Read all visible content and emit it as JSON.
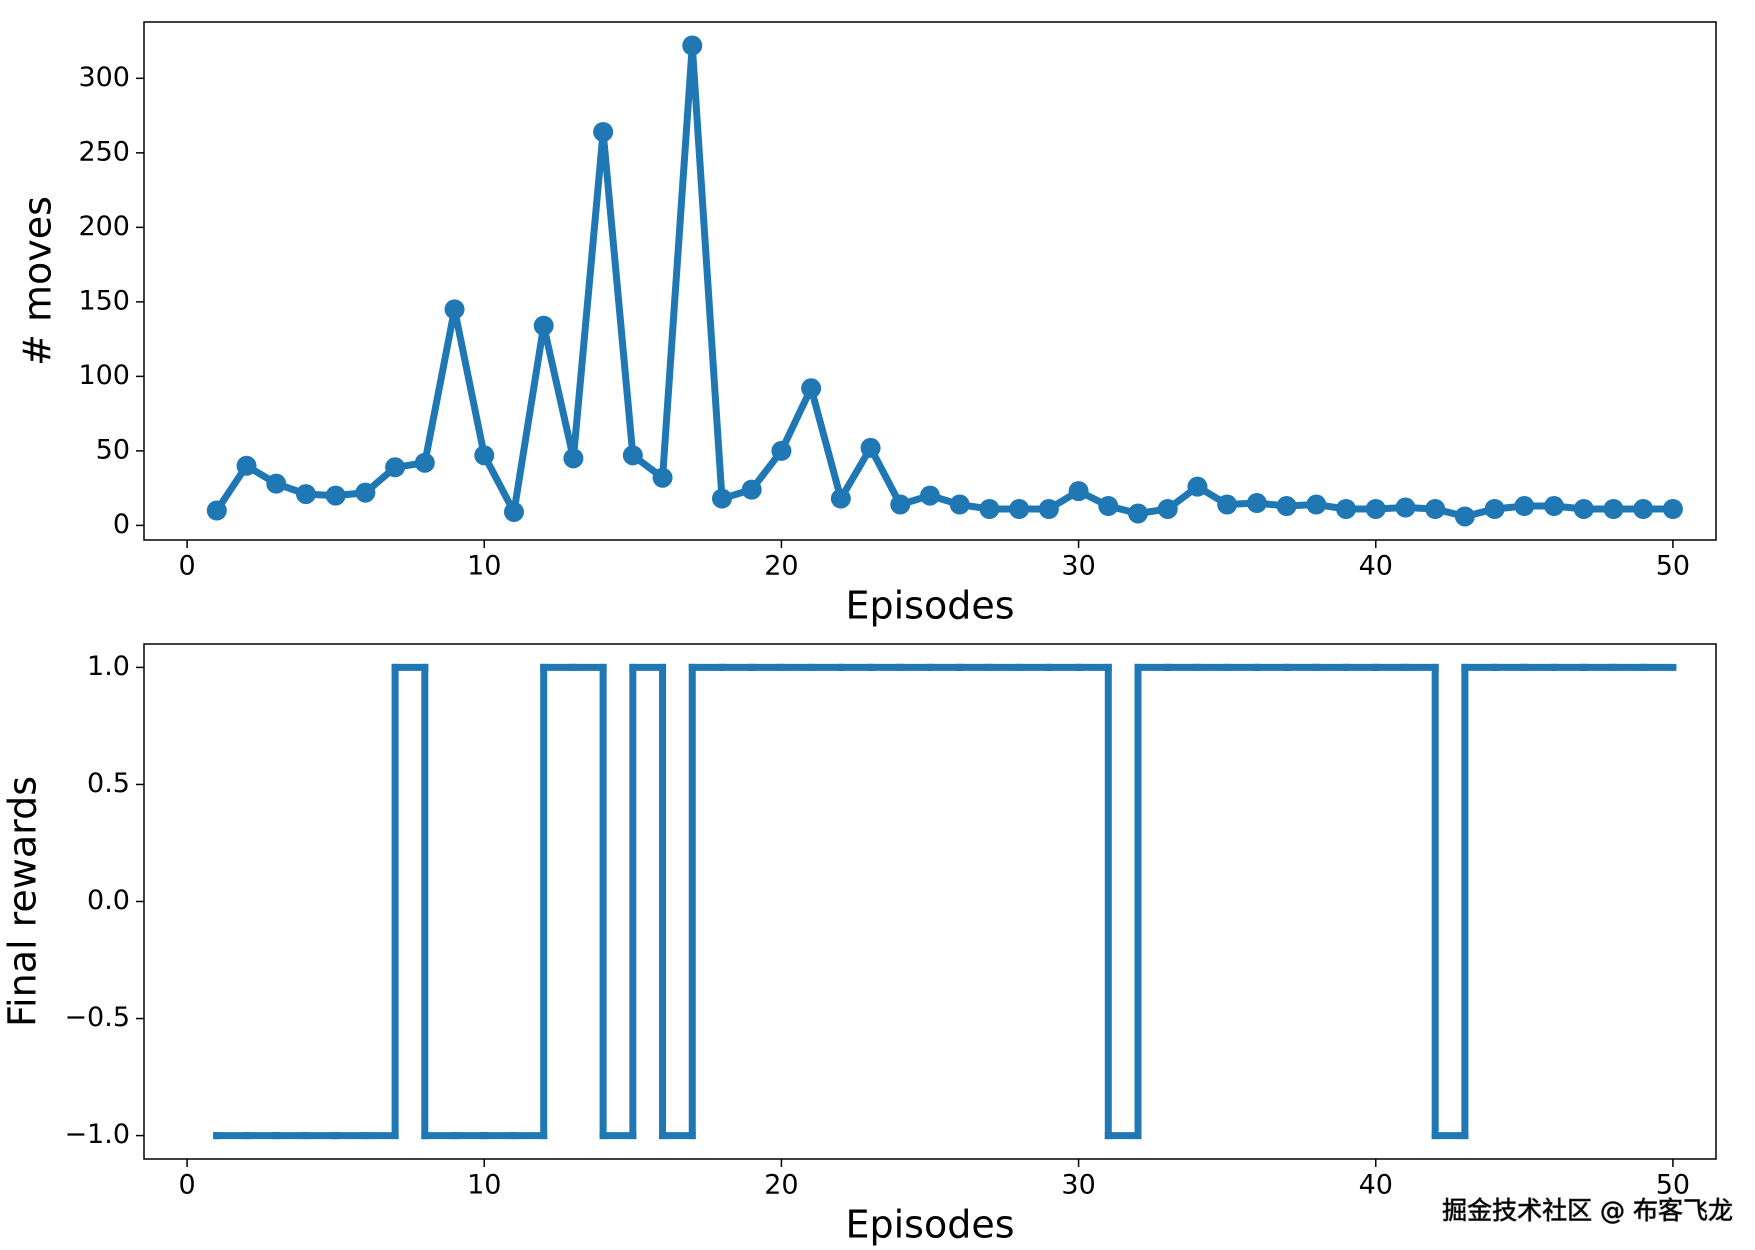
{
  "chart_data": [
    {
      "type": "line",
      "x_label": "Episodes",
      "y_label": "# moves",
      "color": "#1f77b4",
      "marker": "circle",
      "x": [
        1,
        2,
        3,
        4,
        5,
        6,
        7,
        8,
        9,
        10,
        11,
        12,
        13,
        14,
        15,
        16,
        17,
        18,
        19,
        20,
        21,
        22,
        23,
        24,
        25,
        26,
        27,
        28,
        29,
        30,
        31,
        32,
        33,
        34,
        35,
        36,
        37,
        38,
        39,
        40,
        41,
        42,
        43,
        44,
        45,
        46,
        47,
        48,
        49,
        50
      ],
      "values": [
        10,
        40,
        28,
        21,
        20,
        22,
        39,
        42,
        145,
        47,
        9,
        134,
        45,
        264,
        47,
        32,
        322,
        18,
        24,
        50,
        92,
        18,
        52,
        14,
        20,
        14,
        11,
        11,
        11,
        23,
        13,
        8,
        11,
        26,
        14,
        15,
        13,
        14,
        11,
        11,
        12,
        11,
        6,
        11,
        13,
        13,
        11,
        11,
        11,
        11
      ],
      "xlim": [
        -1.45,
        51.45
      ],
      "xticks": [
        0,
        10,
        20,
        30,
        40,
        50
      ],
      "ylim": [
        -9.8,
        337.8
      ],
      "yticks": [
        0,
        50,
        100,
        150,
        200,
        250,
        300
      ]
    },
    {
      "type": "step",
      "step": "pre",
      "x_label": "Episodes",
      "y_label": "Final rewards",
      "color": "#1f77b4",
      "x": [
        1,
        2,
        3,
        4,
        5,
        6,
        7,
        8,
        9,
        10,
        11,
        12,
        13,
        14,
        15,
        16,
        17,
        18,
        19,
        20,
        21,
        22,
        23,
        24,
        25,
        26,
        27,
        28,
        29,
        30,
        31,
        32,
        33,
        34,
        35,
        36,
        37,
        38,
        39,
        40,
        41,
        42,
        43,
        44,
        45,
        46,
        47,
        48,
        49,
        50
      ],
      "values": [
        -1,
        -1,
        -1,
        -1,
        -1,
        -1,
        -1,
        1,
        -1,
        -1,
        -1,
        -1,
        1,
        1,
        -1,
        1,
        -1,
        1,
        1,
        1,
        1,
        1,
        1,
        1,
        1,
        1,
        1,
        1,
        1,
        1,
        1,
        -1,
        1,
        1,
        1,
        1,
        1,
        1,
        1,
        1,
        1,
        1,
        -1,
        1,
        1,
        1,
        1,
        1,
        1,
        1
      ],
      "xlim": [
        -1.45,
        51.45
      ],
      "xticks": [
        0,
        10,
        20,
        30,
        40,
        50
      ],
      "ylim": [
        -1.1,
        1.1
      ],
      "yticks": [
        {
          "value": -1,
          "label": "−1.0"
        },
        {
          "value": -0.5,
          "label": "−0.5"
        },
        {
          "value": 0,
          "label": "0.0"
        },
        {
          "value": 0.5,
          "label": "0.5"
        },
        {
          "value": 1,
          "label": "1.0"
        }
      ]
    }
  ],
  "watermark": "掘金技术社区 @ 布客飞龙"
}
